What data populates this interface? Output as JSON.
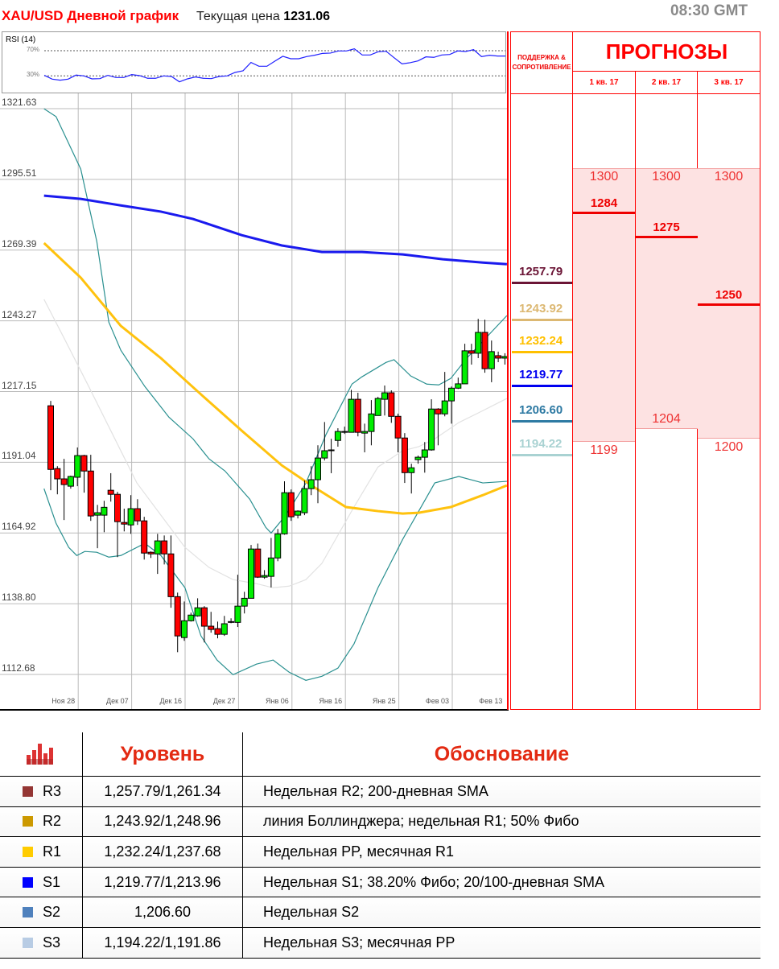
{
  "header": {
    "title": "XAU/USD Дневной график",
    "price_label": "Текущая цена",
    "price_value": "1231.06",
    "time": "08:30 GMT"
  },
  "rsi": {
    "label": "RSI (14)",
    "upper_label": "70%",
    "lower_label": "30%",
    "upper": 70,
    "lower": 30,
    "color": "#2020ff",
    "values": [
      30.9,
      24.9,
      23.2,
      24.9,
      31.3,
      30,
      25.3,
      25.7,
      30.9,
      27.4,
      27.4,
      32.1,
      30.4,
      26.2,
      26.2,
      30,
      29.1,
      20.6,
      25.3,
      28.3,
      26.2,
      25.7,
      29.1,
      30,
      35.5,
      38.1,
      51.3,
      45.3,
      45.3,
      53.4,
      61.1,
      57.2,
      57.2,
      60.6,
      62.8,
      65.7,
      66.2,
      69.6,
      69.6,
      73.0,
      63.2,
      63.2,
      68.3,
      69.1,
      58.9,
      49.1,
      50.9,
      53.8,
      60.2,
      59.4,
      63.2,
      64.0,
      69.6,
      68.7,
      71.7,
      60.6,
      62.8,
      61.5,
      61.5
    ]
  },
  "chart_data": {
    "type": "candlestick",
    "ylim": [
      1112.68,
      1321.63
    ],
    "yticks": [
      "1321.63",
      "1295.51",
      "1269.39",
      "1243.27",
      "1217.15",
      "1191.04",
      "1164.92",
      "1138.80",
      "1112.68"
    ],
    "xticks": [
      {
        "bar": 4,
        "label": "Ноя 28"
      },
      {
        "bar": 12,
        "label": "Дек 07"
      },
      {
        "bar": 20,
        "label": "Дек 16"
      },
      {
        "bar": 28,
        "label": "Дек 27"
      },
      {
        "bar": 36,
        "label": "Янв 06"
      },
      {
        "bar": 44,
        "label": "Янв 16"
      },
      {
        "bar": 52,
        "label": "Янв 25"
      },
      {
        "bar": 60,
        "label": "Фев 03"
      },
      {
        "bar": 68,
        "label": "Фев 13"
      }
    ],
    "grid": true,
    "colors": {
      "up": "#00ee00",
      "down": "#ff0000",
      "sma200": "#1a1aee",
      "sma100": "#ffc20e",
      "bb_band": "#2a9090",
      "bb_mid": "#e2e2e2"
    },
    "candles": [
      [
        1211.9,
        1213.7,
        1180.7,
        1188.4
      ],
      [
        1188.7,
        1189.6,
        1179.2,
        1184.9
      ],
      [
        1184.9,
        1192.3,
        1169.7,
        1182.8
      ],
      [
        1182.2,
        1186.1,
        1181.3,
        1185.8
      ],
      [
        1185.5,
        1196.5,
        1182.2,
        1193.5
      ],
      [
        1193.5,
        1193.8,
        1179.8,
        1187.8
      ],
      [
        1187.8,
        1193.8,
        1169.4,
        1171.2
      ],
      [
        1171.5,
        1175.3,
        1159.3,
        1172.4
      ],
      [
        1171.5,
        1176.8,
        1165.2,
        1174.4
      ],
      [
        1180.7,
        1187.0,
        1176.5,
        1179.2
      ],
      [
        1179.2,
        1180.1,
        1156.0,
        1169.1
      ],
      [
        1168.8,
        1173.9,
        1165.5,
        1168.2
      ],
      [
        1167.9,
        1178.9,
        1164.6,
        1173.9
      ],
      [
        1173.9,
        1177.4,
        1167.9,
        1169.4
      ],
      [
        1169.4,
        1170.9,
        1155.1,
        1157.5
      ],
      [
        1157.8,
        1158.1,
        1155.7,
        1157.2
      ],
      [
        1157.2,
        1164.6,
        1149.8,
        1162.0
      ],
      [
        1162.0,
        1164.0,
        1153.3,
        1157.2
      ],
      [
        1157.2,
        1164.0,
        1137.3,
        1141.4
      ],
      [
        1141.4,
        1142.9,
        1120.9,
        1126.9
      ],
      [
        1126.3,
        1139.6,
        1125.1,
        1132.5
      ],
      [
        1132.5,
        1135.5,
        1132.2,
        1134.6
      ],
      [
        1134.3,
        1140.8,
        1134.0,
        1137.3
      ],
      [
        1137.3,
        1137.9,
        1124.5,
        1130.5
      ],
      [
        1130.5,
        1135.8,
        1128.1,
        1129.3
      ],
      [
        1129.6,
        1132.2,
        1126.0,
        1127.5
      ],
      [
        1127.5,
        1134.3,
        1126.9,
        1131.4
      ],
      [
        1131.9,
        1133.4,
        1131.6,
        1132.2
      ],
      [
        1131.9,
        1149.5,
        1130.2,
        1137.9
      ],
      [
        1137.9,
        1143.2,
        1135.2,
        1140.8
      ],
      [
        1140.8,
        1160.5,
        1140.8,
        1159.0
      ],
      [
        1159.0,
        1161.0,
        1148.3,
        1148.6
      ],
      [
        1148.6,
        1151.2,
        1148.0,
        1149.2
      ],
      [
        1148.9,
        1163.1,
        1144.8,
        1155.7
      ],
      [
        1155.7,
        1166.4,
        1154.5,
        1164.6
      ],
      [
        1164.6,
        1184.0,
        1164.3,
        1179.8
      ],
      [
        1179.8,
        1181.0,
        1169.4,
        1170.9
      ],
      [
        1171.5,
        1173.3,
        1170.3,
        1173.0
      ],
      [
        1172.4,
        1184.3,
        1171.5,
        1181.3
      ],
      [
        1181.3,
        1189.6,
        1178.9,
        1184.6
      ],
      [
        1184.6,
        1197.3,
        1175.9,
        1192.6
      ],
      [
        1192.6,
        1205.9,
        1191.7,
        1195.3
      ],
      [
        1195.3,
        1199.7,
        1187.0,
        1195.6
      ],
      [
        1199.1,
        1203.6,
        1196.8,
        1202.4
      ],
      [
        1202.1,
        1204.2,
        1201.5,
        1202.4
      ],
      [
        1202.1,
        1217.8,
        1202.1,
        1214.3
      ],
      [
        1214.3,
        1216.7,
        1200.6,
        1202.1
      ],
      [
        1201.8,
        1205.3,
        1194.7,
        1202.4
      ],
      [
        1202.4,
        1214.0,
        1197.3,
        1208.9
      ],
      [
        1208.3,
        1215.2,
        1208.3,
        1214.6
      ],
      [
        1214.3,
        1219.4,
        1208.3,
        1216.7
      ],
      [
        1216.7,
        1217.6,
        1205.6,
        1208.0
      ],
      [
        1208.0,
        1209.0,
        1194.7,
        1200.0
      ],
      [
        1200.0,
        1201.8,
        1183.4,
        1187.2
      ],
      [
        1187.2,
        1190.5,
        1179.5,
        1189.0
      ],
      [
        1192.0,
        1193.5,
        1190.5,
        1192.9
      ],
      [
        1192.9,
        1198.5,
        1187.2,
        1195.6
      ],
      [
        1195.6,
        1214.3,
        1195.3,
        1210.7
      ],
      [
        1210.7,
        1211.0,
        1197.3,
        1208.9
      ],
      [
        1208.9,
        1224.4,
        1208.0,
        1213.7
      ],
      [
        1213.7,
        1219.0,
        1205.3,
        1218.4
      ],
      [
        1218.4,
        1222.3,
        1218.1,
        1220.0
      ],
      [
        1220.0,
        1234.8,
        1220.0,
        1232.2
      ],
      [
        1232.2,
        1234.8,
        1227.1,
        1231.3
      ],
      [
        1231.3,
        1244.0,
        1229.5,
        1239.0
      ],
      [
        1239.0,
        1243.7,
        1224.1,
        1225.6
      ],
      [
        1225.6,
        1236.0,
        1220.6,
        1231.9
      ],
      [
        1230.4,
        1231.9,
        1228.0,
        1229.5
      ],
      [
        1229.5,
        1231.3,
        1227.1,
        1230.1
      ]
    ],
    "lines": {
      "sma200": [
        [
          -1,
          1289.5
        ],
        [
          4.5,
          1288.3
        ],
        [
          10.5,
          1285.9
        ],
        [
          16.5,
          1283.6
        ],
        [
          21.3,
          1280.9
        ],
        [
          28.6,
          1274.9
        ],
        [
          34.6,
          1271.1
        ],
        [
          40.6,
          1268.7
        ],
        [
          46.6,
          1268.7
        ],
        [
          52.7,
          1267.8
        ],
        [
          58.7,
          1266.0
        ],
        [
          64.7,
          1264.8
        ],
        [
          68.3,
          1264.2
        ]
      ],
      "sma100": [
        [
          -1,
          1272.0
        ],
        [
          4.5,
          1259.2
        ],
        [
          10.5,
          1241.4
        ],
        [
          16.5,
          1229.5
        ],
        [
          22.5,
          1216.1
        ],
        [
          28.6,
          1202.7
        ],
        [
          34.6,
          1189.9
        ],
        [
          39.4,
          1181.9
        ],
        [
          44.2,
          1174.5
        ],
        [
          49,
          1173.0
        ],
        [
          52.7,
          1172.1
        ],
        [
          55.1,
          1172.4
        ],
        [
          59.9,
          1174.5
        ],
        [
          64.7,
          1178.9
        ],
        [
          68.3,
          1182.5
        ]
      ],
      "bb_upper": [
        [
          -1,
          1321.6
        ],
        [
          0.8,
          1318.7
        ],
        [
          4.5,
          1299.3
        ],
        [
          6.9,
          1272.6
        ],
        [
          8.7,
          1242.8
        ],
        [
          10.5,
          1232.4
        ],
        [
          14.1,
          1219.0
        ],
        [
          17.7,
          1207.7
        ],
        [
          21.3,
          1199.7
        ],
        [
          23.7,
          1192.3
        ],
        [
          26.1,
          1187.8
        ],
        [
          29.8,
          1177.4
        ],
        [
          32.2,
          1167.0
        ],
        [
          33,
          1164.9
        ],
        [
          35.2,
          1171.5
        ],
        [
          38.2,
          1183.3
        ],
        [
          41.2,
          1201.2
        ],
        [
          45.1,
          1219.9
        ],
        [
          46.6,
          1222.6
        ],
        [
          50.2,
          1227.9
        ],
        [
          51.4,
          1228.9
        ],
        [
          53.9,
          1222.9
        ],
        [
          56.3,
          1219.9
        ],
        [
          58.1,
          1219.6
        ],
        [
          59.9,
          1222.0
        ],
        [
          62.3,
          1229.5
        ],
        [
          68.3,
          1245.2
        ]
      ],
      "bb_lower": [
        [
          -1,
          1181.3
        ],
        [
          0.8,
          1168.5
        ],
        [
          2.7,
          1159.6
        ],
        [
          3.9,
          1156.6
        ],
        [
          5.1,
          1158.1
        ],
        [
          6.9,
          1157.8
        ],
        [
          8.7,
          1156.0
        ],
        [
          10.5,
          1156.6
        ],
        [
          14.1,
          1161.1
        ],
        [
          16.5,
          1156.6
        ],
        [
          20.1,
          1144.7
        ],
        [
          22.5,
          1126.9
        ],
        [
          24.9,
          1118.0
        ],
        [
          27.3,
          1112.6
        ],
        [
          30.8,
          1116.5
        ],
        [
          33.3,
          1118.0
        ],
        [
          35.7,
          1113.5
        ],
        [
          38.2,
          1110.5
        ],
        [
          40.6,
          1112.0
        ],
        [
          43,
          1115.0
        ],
        [
          45.4,
          1123.9
        ],
        [
          49,
          1144.7
        ],
        [
          52.7,
          1162.6
        ],
        [
          55.1,
          1173.0
        ],
        [
          57.5,
          1183.4
        ],
        [
          61.1,
          1185.8
        ],
        [
          64.7,
          1183.4
        ],
        [
          68.3,
          1184.0
        ]
      ],
      "bb_mid": [
        [
          -1,
          1251.2
        ],
        [
          2,
          1236.9
        ],
        [
          5.7,
          1219.0
        ],
        [
          9.3,
          1201.2
        ],
        [
          12.9,
          1183.4
        ],
        [
          16.5,
          1171.5
        ],
        [
          20.1,
          1159.6
        ],
        [
          23.7,
          1152.2
        ],
        [
          27.3,
          1147.7
        ],
        [
          30.8,
          1146.2
        ],
        [
          33.3,
          1144.7
        ],
        [
          35.7,
          1145.3
        ],
        [
          38.2,
          1147.7
        ],
        [
          40.6,
          1153.7
        ],
        [
          43,
          1164.1
        ],
        [
          45.4,
          1174.5
        ],
        [
          49,
          1189.3
        ],
        [
          52.7,
          1195.3
        ],
        [
          55.1,
          1196.8
        ],
        [
          57.5,
          1199.7
        ],
        [
          61.1,
          1205.7
        ],
        [
          64.7,
          1210.1
        ],
        [
          68.3,
          1214.6
        ]
      ]
    }
  },
  "panel": {
    "sr_title": "ПОДДЕРЖКА & СОПРОТИВЛЕНИЕ",
    "forecast_title": "ПРОГНОЗЫ",
    "levels": [
      {
        "value": "1257.79",
        "color": "#6b1536"
      },
      {
        "value": "1243.92",
        "color": "#dcb872"
      },
      {
        "value": "1232.24",
        "color": "#ffc000"
      },
      {
        "value": "1219.77",
        "color": "#0000f0"
      },
      {
        "value": "1206.60",
        "color": "#2e7aa3"
      },
      {
        "value": "1194.22",
        "color": "#a9d2d2"
      }
    ],
    "quarters": [
      {
        "label": "1 кв. 17",
        "high": "1300",
        "mid": "1284",
        "low": "1199"
      },
      {
        "label": "2 кв. 17",
        "high": "1300",
        "mid": "1275",
        "low": "1204"
      },
      {
        "label": "3 кв. 17",
        "high": "1300",
        "mid": "1250",
        "low": "1200"
      }
    ]
  },
  "table": {
    "col_level": "Уровень",
    "col_reason": "Обоснование",
    "rows": [
      {
        "name": "R3",
        "color": "#943634",
        "level": "1,257.79/1,261.34",
        "reason": "Недельная R2; 200-дневная SMA"
      },
      {
        "name": "R2",
        "color": "#cc9900",
        "level": "1,243.92/1,248.96",
        "reason": "линия Боллинджера; недельная R1; 50% Фибо"
      },
      {
        "name": "R1",
        "color": "#ffcc00",
        "level": "1,232.24/1,237.68",
        "reason": "Недельная PP, месячная R1"
      },
      {
        "name": "S1",
        "color": "#0000ff",
        "level": "1,219.77/1,213.96",
        "reason": "Недельная S1; 38.20% Фибо; 20/100-дневная SMA"
      },
      {
        "name": "S2",
        "color": "#4f81bd",
        "level": "1,206.60",
        "reason": "Недельная S2"
      },
      {
        "name": "S3",
        "color": "#b8cce4",
        "level": "1,194.22/1,191.86",
        "reason": "Недельная S3; месячная PP"
      }
    ]
  }
}
